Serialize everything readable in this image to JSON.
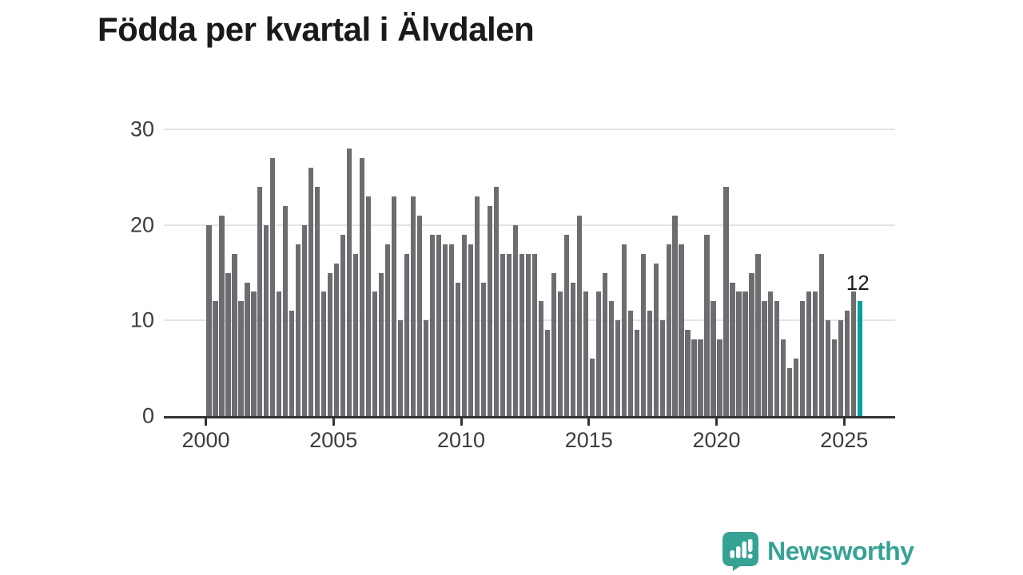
{
  "title": "Födda per kvartal i Älvdalen",
  "chart_data": {
    "type": "bar",
    "title": "Födda per kvartal i Älvdalen",
    "xlabel": "",
    "ylabel": "",
    "x_start": "2000Q1",
    "x_end": "2025Q3",
    "x_tick_labels": [
      "2000",
      "2005",
      "2010",
      "2015",
      "2020",
      "2025"
    ],
    "y_tick_labels": [
      "0",
      "10",
      "20",
      "30"
    ],
    "ylim": [
      0,
      30
    ],
    "grid": "horizontal",
    "values": [
      20,
      12,
      21,
      15,
      17,
      12,
      14,
      13,
      24,
      20,
      27,
      13,
      22,
      11,
      18,
      20,
      26,
      24,
      13,
      15,
      16,
      19,
      28,
      17,
      27,
      23,
      13,
      15,
      18,
      23,
      10,
      17,
      23,
      21,
      10,
      19,
      19,
      18,
      18,
      14,
      19,
      18,
      23,
      14,
      22,
      24,
      17,
      17,
      20,
      17,
      17,
      17,
      12,
      9,
      15,
      13,
      19,
      14,
      21,
      13,
      6,
      13,
      15,
      12,
      10,
      18,
      11,
      9,
      17,
      11,
      16,
      10,
      18,
      21,
      18,
      9,
      8,
      8,
      19,
      12,
      8,
      24,
      14,
      13,
      13,
      15,
      17,
      12,
      13,
      12,
      8,
      5,
      6,
      12,
      13,
      13,
      17,
      10,
      8,
      10,
      11,
      13,
      12
    ],
    "highlight_last_bar": true,
    "last_value_label": "12",
    "bar_color": "#6c6c71",
    "highlight_color": "#00a19d",
    "axis_color": "#333333",
    "gridline_color": "#e4e4e4",
    "label_color": "#3d3d3d"
  },
  "logo": {
    "text": "Newsworthy",
    "color": "#35a294",
    "icon": "speech-bubble-bar-chart-icon"
  }
}
